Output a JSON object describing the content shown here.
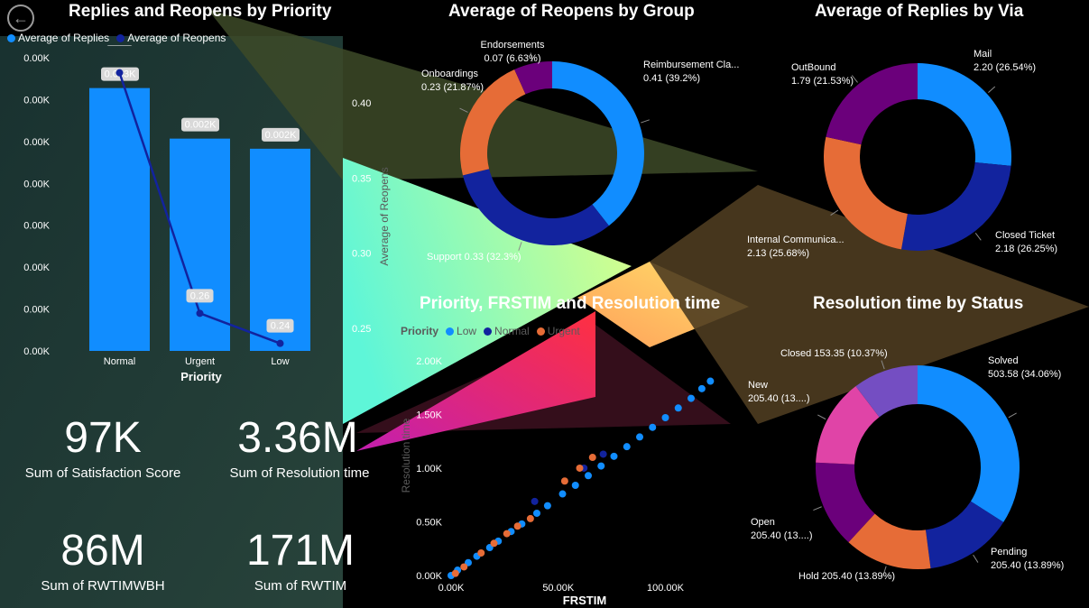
{
  "nav": {
    "back_icon": "arrow-left-icon"
  },
  "colors": {
    "light_blue": "#118dff",
    "dark_blue": "#12239e",
    "orange": "#e66c37",
    "purple": "#6b007b",
    "pink": "#e044a7",
    "violet": "#744ec2",
    "bg": "#000000"
  },
  "kpis": [
    {
      "value": "97K",
      "label": "Sum of Satisfaction Score"
    },
    {
      "value": "3.36M",
      "label": "Sum of Resolution time"
    },
    {
      "value": "86M",
      "label": "Sum of RWTIMWBH"
    },
    {
      "value": "171M",
      "label": "Sum of RWTIM"
    }
  ],
  "chart_data": [
    {
      "type": "bar",
      "title": "Replies and Reopens by Priority",
      "xlabel": "Priority",
      "ylabel": "Average of Replies",
      "y2label": "Average of Reopens",
      "categories": [
        "Normal",
        "Urgent",
        "Low"
      ],
      "legend": [
        "Average of Replies",
        "Average of Reopens"
      ],
      "series": [
        {
          "name": "Average of Replies",
          "kind": "bar",
          "labels": [
            "0.003K",
            "0.002K",
            "0.002K"
          ],
          "values": [
            0.0026,
            0.0021,
            0.002
          ]
        },
        {
          "name": "Average of Reopens",
          "kind": "line",
          "labels": [
            "0.42",
            "0.26",
            "0.24"
          ],
          "values": [
            0.42,
            0.26,
            0.24
          ]
        }
      ],
      "yticks": [
        "0.00K",
        "0.00K",
        "0.00K",
        "0.00K",
        "0.00K",
        "0.00K",
        "0.00K",
        "0.00K"
      ],
      "y2ticks": [
        "0.40",
        "0.35",
        "0.30",
        "0.25"
      ],
      "y2lim": [
        0.235,
        0.43
      ]
    },
    {
      "type": "pie",
      "title": "Average of Reopens by Group",
      "slices": [
        {
          "name": "Reimbursement Cla...",
          "value": 0.41,
          "label": "0.41 (39.2%)",
          "color": "#118dff"
        },
        {
          "name": "Support",
          "value": 0.33,
          "label": "0.33 (32.3%)",
          "color": "#12239e"
        },
        {
          "name": "Onboardings",
          "value": 0.23,
          "label": "0.23 (21.87%)",
          "color": "#e66c37"
        },
        {
          "name": "Endorsements",
          "value": 0.07,
          "label": "0.07 (6.63%)",
          "color": "#6b007b"
        }
      ]
    },
    {
      "type": "pie",
      "title": "Average of Replies by Via",
      "slices": [
        {
          "name": "Mail",
          "value": 2.2,
          "label": "2.20 (26.54%)",
          "color": "#118dff"
        },
        {
          "name": "Closed Ticket",
          "value": 2.18,
          "label": "2.18 (26.25%)",
          "color": "#12239e"
        },
        {
          "name": "Internal Communica...",
          "value": 2.13,
          "label": "2.13 (25.68%)",
          "color": "#e66c37"
        },
        {
          "name": "OutBound",
          "value": 1.79,
          "label": "1.79 (21.53%)",
          "color": "#6b007b"
        }
      ]
    },
    {
      "type": "scatter",
      "title": "Priority, FRSTIM and Resolution time",
      "xlabel": "FRSTIM",
      "ylabel": "Resolution time",
      "legend_title": "Priority",
      "legend": [
        "Low",
        "Normal",
        "Urgent"
      ],
      "xticks": [
        "0.00K",
        "50.00K",
        "100.00K"
      ],
      "yticks": [
        "0.00K",
        "0.50K",
        "1.00K",
        "1.50K",
        "2.00K"
      ],
      "xlim": [
        0,
        120000
      ],
      "ylim": [
        0,
        2100
      ],
      "series": [
        {
          "name": "Low",
          "color": "#118dff",
          "points": [
            [
              0,
              0
            ],
            [
              3000,
              50
            ],
            [
              8000,
              120
            ],
            [
              12000,
              180
            ],
            [
              18000,
              260
            ],
            [
              22000,
              320
            ],
            [
              28000,
              410
            ],
            [
              33000,
              480
            ],
            [
              40000,
              580
            ],
            [
              45000,
              650
            ],
            [
              52000,
              760
            ],
            [
              58000,
              840
            ],
            [
              64000,
              930
            ],
            [
              70000,
              1020
            ],
            [
              76000,
              1110
            ],
            [
              82000,
              1200
            ],
            [
              88000,
              1290
            ],
            [
              94000,
              1380
            ],
            [
              100000,
              1470
            ],
            [
              106000,
              1560
            ],
            [
              112000,
              1650
            ],
            [
              117000,
              1740
            ],
            [
              121000,
              1810
            ]
          ]
        },
        {
          "name": "Normal",
          "color": "#12239e",
          "points": [
            [
              39000,
              690
            ],
            [
              62000,
              1000
            ],
            [
              71000,
              1130
            ]
          ]
        },
        {
          "name": "Urgent",
          "color": "#e66c37",
          "points": [
            [
              2000,
              20
            ],
            [
              6000,
              80
            ],
            [
              14000,
              210
            ],
            [
              20000,
              300
            ],
            [
              26000,
              390
            ],
            [
              31000,
              460
            ],
            [
              37000,
              530
            ],
            [
              53000,
              880
            ],
            [
              60000,
              1000
            ],
            [
              66000,
              1100
            ]
          ]
        }
      ]
    },
    {
      "type": "pie",
      "title": "Resolution time by Status",
      "slices": [
        {
          "name": "Solved",
          "value": 503.58,
          "label": "503.58 (34.06%)",
          "color": "#118dff"
        },
        {
          "name": "Pending",
          "value": 205.4,
          "label": "205.40 (13.89%)",
          "color": "#12239e"
        },
        {
          "name": "Hold",
          "value": 205.4,
          "label": "205.40 (13.89%)",
          "color": "#e66c37"
        },
        {
          "name": "Open",
          "value": 205.4,
          "label": "205.40 (13....)",
          "color": "#6b007b"
        },
        {
          "name": "New",
          "value": 205.4,
          "label": "205.40 (13....)",
          "color": "#e044a7"
        },
        {
          "name": "Closed",
          "value": 153.35,
          "label": "153.35 (10.37%)",
          "color": "#744ec2"
        }
      ]
    }
  ]
}
